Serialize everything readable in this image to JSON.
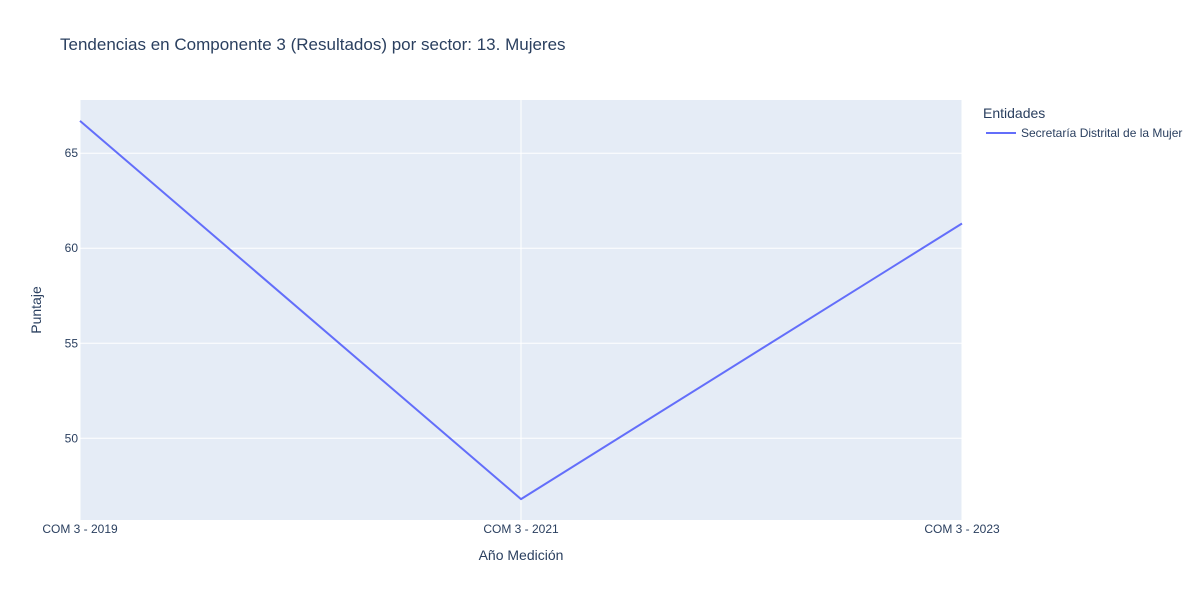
{
  "chart_data": {
    "type": "line",
    "title": "Tendencias en Componente 3 (Resultados) por sector: 13. Mujeres",
    "xlabel": "Año Medición",
    "ylabel": "Puntaje",
    "categories": [
      "COM 3 - 2019",
      "COM 3 - 2021",
      "COM 3 - 2023"
    ],
    "ylim": [
      45.7,
      67.8
    ],
    "yticks": [
      50,
      55,
      60,
      65
    ],
    "grid": true,
    "legend": {
      "title": "Entidades",
      "placement": "top-right outside"
    },
    "series": [
      {
        "name": "Secretaría Distrital de la Mujer",
        "color": "#636efa",
        "values": [
          66.7,
          46.8,
          61.3
        ]
      }
    ]
  },
  "colors": {
    "plot_background": "#e5ecf6",
    "grid": "#ffffff",
    "text": "#2a3f5f"
  }
}
